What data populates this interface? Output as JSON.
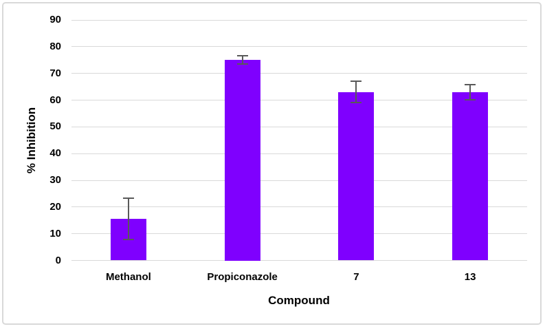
{
  "chart_data": {
    "type": "bar",
    "title": "",
    "categories": [
      "Methanol",
      "Propiconazole",
      "7",
      "13"
    ],
    "values": [
      15.5,
      75,
      63,
      63
    ],
    "error_bars": [
      7.7,
      1.6,
      4.0,
      2.8
    ],
    "xlabel": "Compound",
    "ylabel": "% Inhibition",
    "ylim": [
      0,
      90
    ],
    "yticks": [
      0,
      10,
      20,
      30,
      40,
      50,
      60,
      70,
      80,
      90
    ],
    "grid": "horizontal",
    "legend": "none",
    "colors": {
      "bar": "#7f00fe",
      "error_bar": "#595959",
      "gridline": "#d9d9d9",
      "text": "#000000",
      "frame_border": "#d9d9d9",
      "background": "#ffffff"
    }
  }
}
